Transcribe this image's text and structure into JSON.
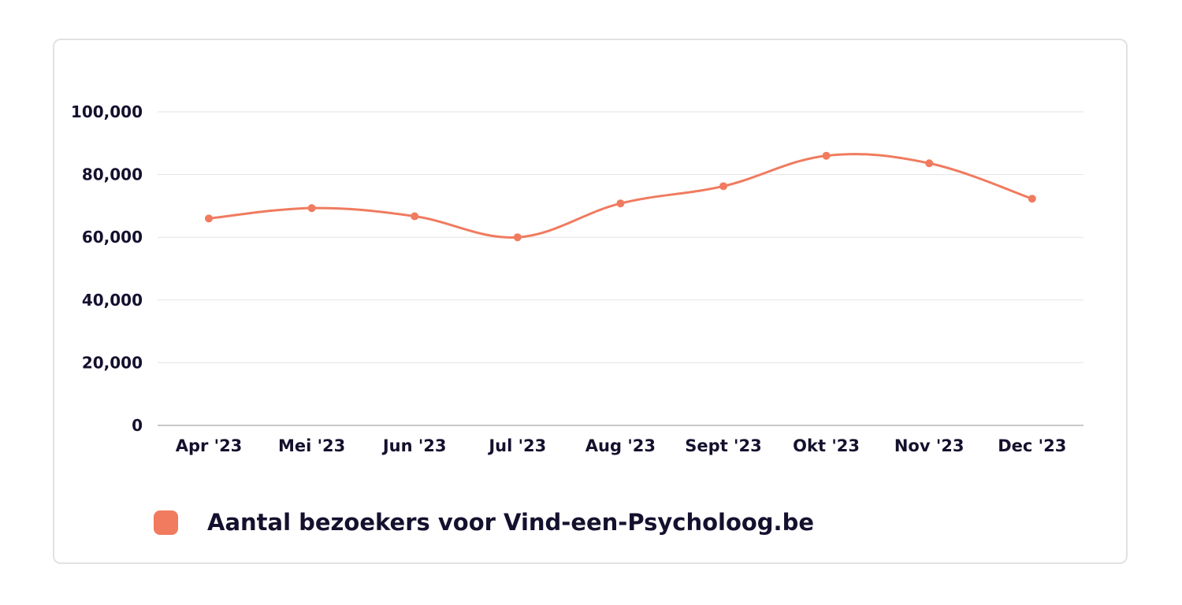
{
  "chart_data": {
    "type": "line",
    "categories": [
      "Apr '23",
      "Mei '23",
      "Jun '23",
      "Jul '23",
      "Aug '23",
      "Sept '23",
      "Okt '23",
      "Nov '23",
      "Dec '23"
    ],
    "series": [
      {
        "name": "Aantal bezoekers voor Vind-een-Psycholoog.be",
        "color": "#f07b5f",
        "values": [
          66000,
          69300,
          66700,
          60000,
          70800,
          76300,
          86000,
          83600,
          72300
        ]
      }
    ],
    "title": "",
    "xlabel": "",
    "ylabel": "",
    "ylim": [
      0,
      100000
    ],
    "yticks": [
      0,
      20000,
      40000,
      60000,
      80000,
      100000
    ],
    "ytick_labels": [
      "0",
      "20,000",
      "40,000",
      "60,000",
      "80,000",
      "100,000"
    ],
    "grid": true,
    "smooth": true,
    "legend_position": "bottom-left"
  },
  "colors": {
    "line": "#f07b5f",
    "text": "#14112e",
    "grid": "#e3e3e3",
    "axis": "#c8c8c8",
    "card_border": "#e2e2e2"
  }
}
